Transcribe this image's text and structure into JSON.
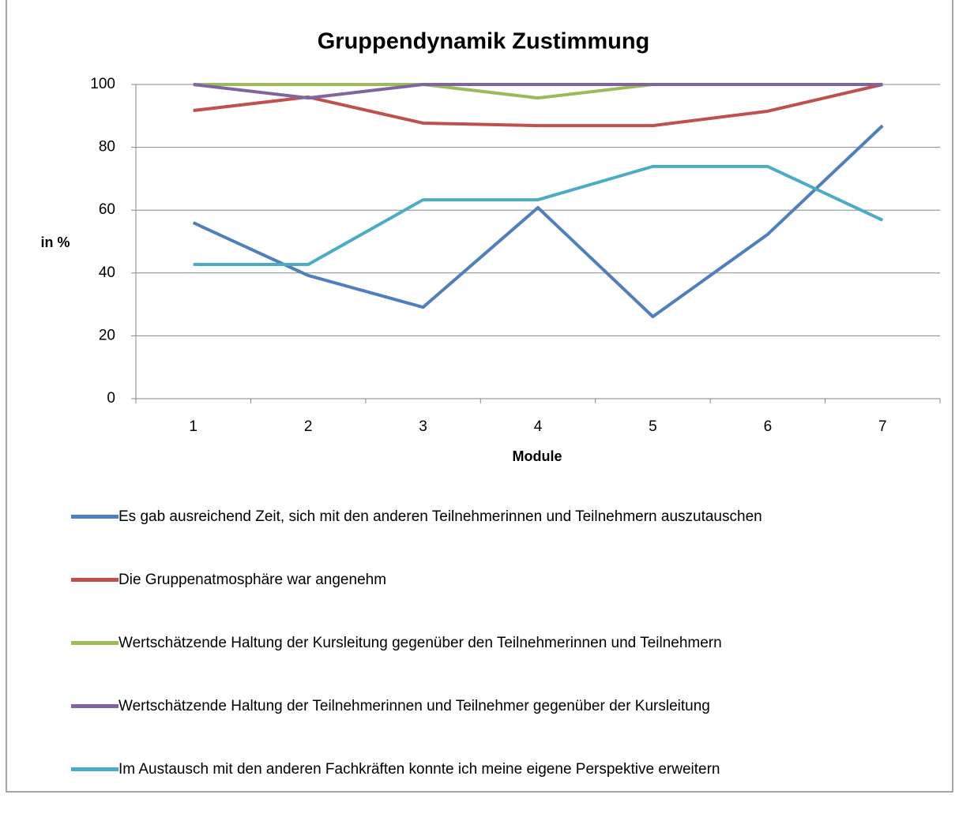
{
  "chart_data": {
    "type": "line",
    "title": "Gruppendynamik Zustimmung",
    "x_label": "Module",
    "y_label": "in %",
    "categories": [
      "1",
      "2",
      "3",
      "4",
      "5",
      "6",
      "7"
    ],
    "ylim": [
      0,
      100
    ],
    "yticks": [
      0,
      20,
      40,
      60,
      80,
      100
    ],
    "grid": true,
    "legend": "bottom",
    "series": [
      {
        "name": "Es gab ausreichend Zeit, sich mit den anderen Teilnehmerinnen und Teilnehmern auszutauschen",
        "color": "#4f7fbf",
        "values": [
          56.0,
          39.2,
          29.1,
          60.8,
          26.1,
          52.3,
          86.9
        ]
      },
      {
        "name": "Die Gruppenatmosphäre war angenehm",
        "color": "#c0504d",
        "values": [
          91.7,
          96.0,
          87.7,
          86.9,
          86.9,
          91.5,
          100
        ]
      },
      {
        "name": "Wertschätzende Haltung der Kursleitung gegenüber den Teilnehmerinnen und Teilnehmern",
        "color": "#9bbb59",
        "values": [
          100,
          100,
          100,
          95.7,
          100,
          100,
          100
        ]
      },
      {
        "name": "Wertschätzende Haltung der Teilnehmerinnen und Teilnehmer gegenüber der Kursleitung",
        "color": "#8064a2",
        "values": [
          100,
          95.7,
          100,
          100,
          100,
          100,
          100
        ]
      },
      {
        "name": "Im Austausch mit den anderen Fachkräften konnte ich meine eigene Perspektive erweitern",
        "color": "#4bacc6",
        "values": [
          42.7,
          42.7,
          63.3,
          63.3,
          73.9,
          73.9,
          56.8
        ]
      }
    ]
  }
}
